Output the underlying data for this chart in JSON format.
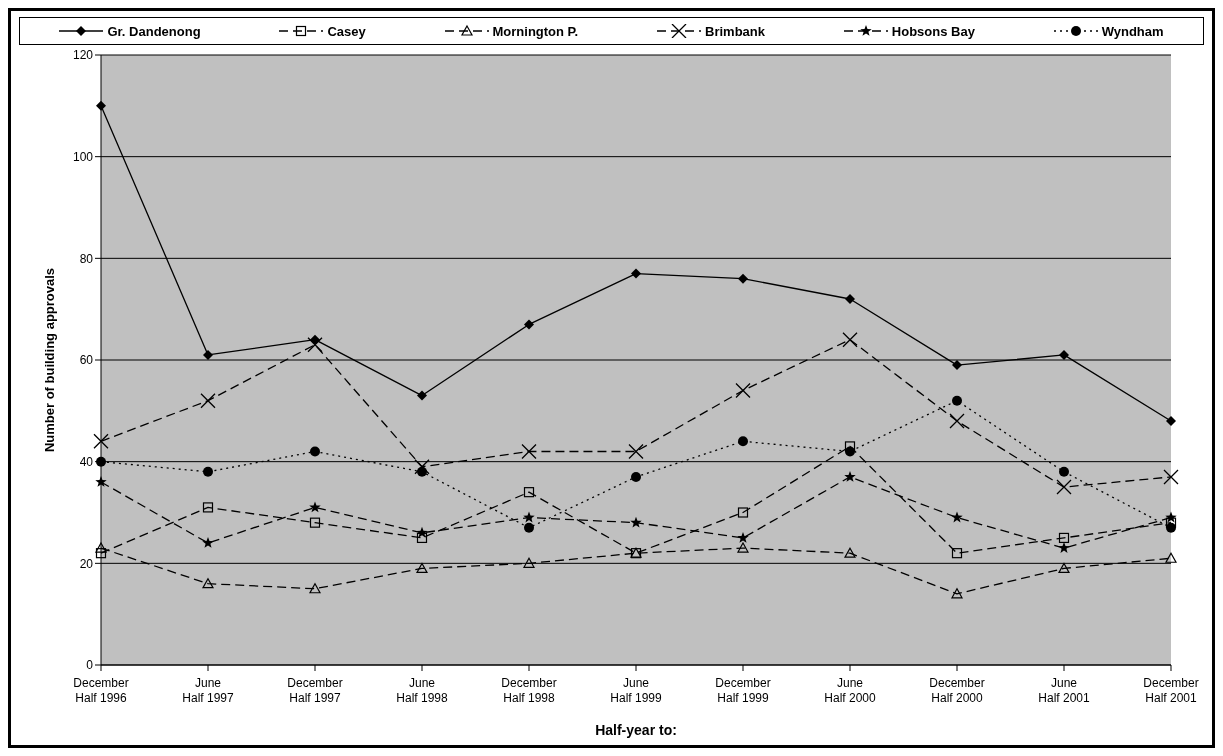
{
  "chart_data": {
    "type": "line",
    "xlabel": "Half-year to:",
    "ylabel": "Number of building approvals",
    "categories": [
      "December Half 1996",
      "June Half 1997",
      "December Half 1997",
      "June Half 1998",
      "December Half 1998",
      "June Half 1999",
      "December Half 1999",
      "June Half 2000",
      "December Half 2000",
      "June Half 2001",
      "December Half 2001"
    ],
    "series": [
      {
        "name": "Gr. Dandenong",
        "color": "#000000",
        "marker": "diamond",
        "line_style": "solid",
        "values": [
          110,
          61,
          64,
          53,
          67,
          77,
          76,
          72,
          59,
          61,
          48
        ]
      },
      {
        "name": "Casey",
        "color": "#000000",
        "marker": "square",
        "line_style": "dashed",
        "values": [
          22,
          31,
          28,
          25,
          34,
          22,
          30,
          43,
          22,
          25,
          28
        ]
      },
      {
        "name": "Mornington P.",
        "color": "#000000",
        "marker": "triangle",
        "line_style": "dashed",
        "values": [
          23,
          16,
          15,
          19,
          20,
          22,
          23,
          22,
          14,
          19,
          21
        ]
      },
      {
        "name": "Brimbank",
        "color": "#000000",
        "marker": "cross",
        "line_style": "dashed",
        "values": [
          44,
          52,
          63,
          39,
          42,
          42,
          54,
          64,
          48,
          35,
          37
        ]
      },
      {
        "name": "Hobsons Bay",
        "color": "#000000",
        "marker": "star",
        "line_style": "dashed",
        "values": [
          36,
          24,
          31,
          26,
          29,
          28,
          25,
          37,
          29,
          23,
          29
        ]
      },
      {
        "name": "Wyndham",
        "color": "#000000",
        "marker": "circle",
        "line_style": "dotted",
        "values": [
          40,
          38,
          42,
          38,
          27,
          37,
          44,
          42,
          52,
          38,
          27
        ]
      }
    ],
    "ylim": [
      0,
      120
    ],
    "yticks": [
      0,
      20,
      40,
      60,
      80,
      100,
      120
    ],
    "grid": "y",
    "legend": "top"
  }
}
